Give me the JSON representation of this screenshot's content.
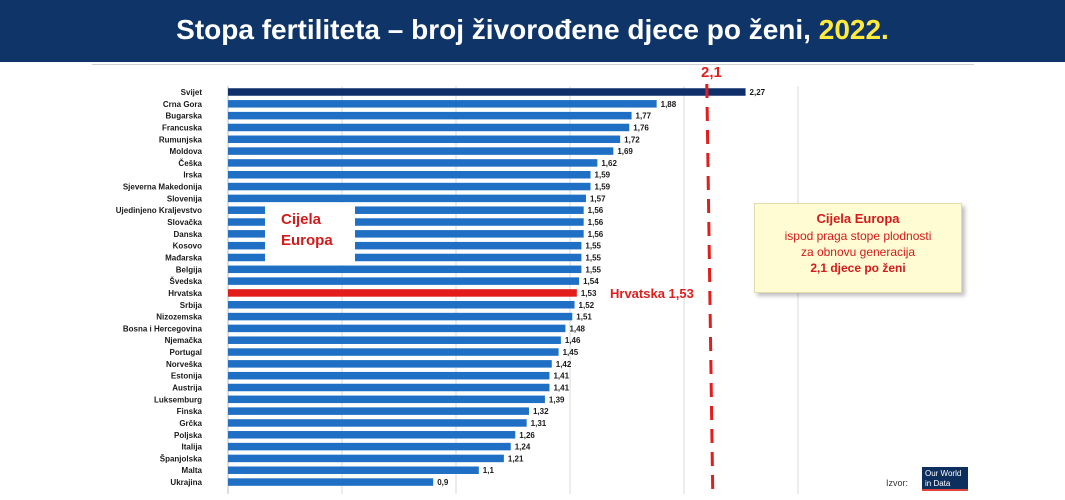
{
  "header": {
    "title_main": "Stopa fertiliteta – broj živorođene djece po ženi, ",
    "title_year": "2022."
  },
  "annotations": {
    "europe_box": [
      "Cijela",
      "Europa"
    ],
    "croatia_label": "Hrvatska 1,53",
    "threshold_label": "2,1",
    "note_lines": [
      "Cijela Europa",
      "ispod praga stope plodnosti",
      "za obnovu generacija",
      "2,1 djece po ženi"
    ],
    "source_label": "Izvor:",
    "source_logo": [
      "Our World",
      "in Data"
    ]
  },
  "colors": {
    "header_bg": "#0f3568",
    "world_bar": "#0f2f6b",
    "bar": "#1f6fc4",
    "croatia_bar": "#e31c1c",
    "threshold": "#e31c1c"
  },
  "chart_data": {
    "type": "bar",
    "orientation": "horizontal",
    "title": "Stopa fertiliteta – broj živorođene djece po ženi, 2022.",
    "categories": [
      "Svijet",
      "Crna Gora",
      "Bugarska",
      "Francuska",
      "Rumunjska",
      "Moldova",
      "Češka",
      "Irska",
      "Sjeverna Makedonija",
      "Slovenija",
      "Ujedinjeno Kraljevstvo",
      "Slovačka",
      "Danska",
      "Kosovo",
      "Mađarska",
      "Belgija",
      "Švedska",
      "Hrvatska",
      "Srbija",
      "Nizozemska",
      "Bosna i Hercegovina",
      "Njemačka",
      "Portugal",
      "Norveška",
      "Estonija",
      "Austrija",
      "Luksemburg",
      "Finska",
      "Grčka",
      "Poljska",
      "Italija",
      "Španjolska",
      "Malta",
      "Ukrajina"
    ],
    "values": [
      2.27,
      1.88,
      1.77,
      1.76,
      1.72,
      1.69,
      1.62,
      1.59,
      1.59,
      1.57,
      1.56,
      1.56,
      1.56,
      1.55,
      1.55,
      1.55,
      1.54,
      1.53,
      1.52,
      1.51,
      1.48,
      1.46,
      1.45,
      1.42,
      1.41,
      1.41,
      1.39,
      1.32,
      1.31,
      1.26,
      1.24,
      1.21,
      1.1,
      0.9
    ],
    "value_labels": [
      "2,27",
      "1,88",
      "1,77",
      "1,76",
      "1,72",
      "1,69",
      "1,62",
      "1,59",
      "1,59",
      "1,57",
      "1,56",
      "1,56",
      "1,56",
      "1,55",
      "1,55",
      "1,55",
      "1,54",
      "1,53",
      "1,52",
      "1,51",
      "1,48",
      "1,46",
      "1,45",
      "1,42",
      "1,41",
      "1,41",
      "1,39",
      "1,32",
      "1,31",
      "1,26",
      "1,24",
      "1,21",
      "1,1",
      "0,9"
    ],
    "highlight": {
      "world": "Svijet",
      "croatia": "Hrvatska"
    },
    "threshold": 2.1,
    "xlim": [
      0,
      2.5
    ],
    "grid": true,
    "xlabel": "",
    "ylabel": ""
  }
}
